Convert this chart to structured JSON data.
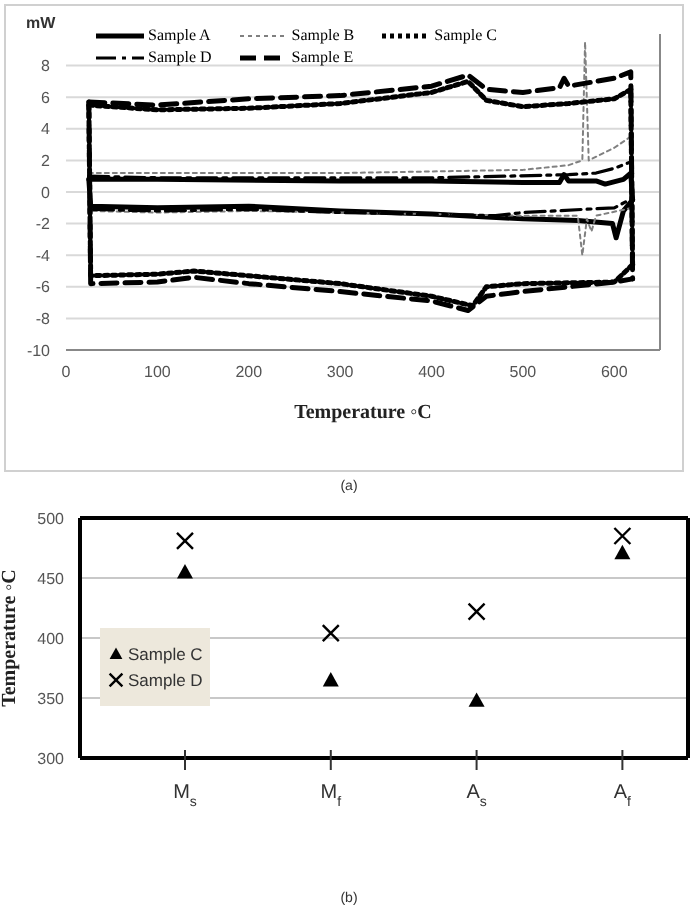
{
  "chart_data": [
    {
      "type": "line",
      "xlabel": "Temperature ◦C",
      "ylabel": "mW",
      "xlim": [
        0,
        650
      ],
      "xticks": [
        0,
        100,
        200,
        300,
        400,
        500,
        600
      ],
      "ylim": [
        -10,
        10
      ],
      "yticks": [
        -10,
        -8,
        -6,
        -4,
        -2,
        0,
        2,
        4,
        6,
        8
      ],
      "grid": "y",
      "legend": "top",
      "annotations": [
        "(a)"
      ],
      "series": [
        {
          "name": "Sample A",
          "color": "#000000",
          "line_style": "solid",
          "x": [
            25,
            100,
            300,
            400,
            500,
            540,
            545,
            550,
            580,
            590,
            610,
            618,
            620
          ],
          "values": [
            0.8,
            0.8,
            0.7,
            0.7,
            0.6,
            0.6,
            1.1,
            0.7,
            0.7,
            0.5,
            0.8,
            1.2,
            -0.5
          ]
        },
        {
          "color": "#000000",
          "line_style": "solid",
          "x": [
            25,
            27,
            100,
            200,
            300,
            400,
            500,
            560,
            598,
            602,
            610,
            620
          ],
          "values": [
            0.8,
            -0.9,
            -1.0,
            -0.9,
            -1.2,
            -1.4,
            -1.7,
            -1.8,
            -2.0,
            -2.9,
            -1.2,
            -0.5
          ]
        },
        {
          "name": "Sample B",
          "color": "#808080",
          "line_style": "dotted",
          "x": [
            25,
            100,
            300,
            400,
            500,
            550,
            565,
            568,
            572,
            600,
            618,
            620
          ],
          "values": [
            1.2,
            1.2,
            1.2,
            1.3,
            1.4,
            1.7,
            2.0,
            9.5,
            2.0,
            2.8,
            3.5,
            -1.0
          ]
        },
        {
          "color": "#808080",
          "line_style": "dotted",
          "x": [
            25,
            27,
            100,
            200,
            300,
            400,
            500,
            560,
            565,
            570,
            575,
            580,
            620
          ],
          "values": [
            1.2,
            -1.2,
            -1.3,
            -1.2,
            -1.3,
            -1.4,
            -1.5,
            -1.5,
            -4.0,
            -1.7,
            -2.5,
            -1.5,
            -1.0
          ]
        },
        {
          "name": "Sample C",
          "color": "#000000",
          "line_style": "dotted",
          "x": [
            25,
            100,
            200,
            300,
            400,
            440,
            460,
            500,
            550,
            600,
            618,
            620
          ],
          "values": [
            5.5,
            5.2,
            5.3,
            5.6,
            6.3,
            7.0,
            5.8,
            5.4,
            5.6,
            5.9,
            6.5,
            -4.6
          ]
        },
        {
          "color": "#000000",
          "line_style": "dotted",
          "x": [
            25,
            27,
            100,
            140,
            200,
            300,
            400,
            445,
            460,
            500,
            600,
            620
          ],
          "values": [
            5.5,
            -5.3,
            -5.2,
            -5.0,
            -5.3,
            -5.8,
            -6.6,
            -7.2,
            -6.0,
            -5.8,
            -5.7,
            -4.6
          ]
        },
        {
          "name": "Sample D",
          "color": "#000000",
          "line_style": "dashdot",
          "x": [
            25,
            100,
            300,
            400,
            480,
            550,
            580,
            600,
            618,
            620
          ],
          "values": [
            1.0,
            0.9,
            0.9,
            0.9,
            1.0,
            1.1,
            1.2,
            1.5,
            1.9,
            -0.4
          ]
        },
        {
          "color": "#000000",
          "line_style": "dashdot",
          "x": [
            25,
            27,
            100,
            200,
            300,
            400,
            470,
            500,
            600,
            620
          ],
          "values": [
            1.0,
            -1.1,
            -1.2,
            -1.1,
            -1.3,
            -1.4,
            -1.5,
            -1.3,
            -1.0,
            -0.4
          ]
        },
        {
          "name": "Sample E",
          "color": "#000000",
          "line_style": "dashed",
          "x": [
            25,
            100,
            200,
            300,
            400,
            440,
            460,
            500,
            540,
            545,
            550,
            600,
            618,
            620
          ],
          "values": [
            5.7,
            5.5,
            5.9,
            6.1,
            6.7,
            7.4,
            6.5,
            6.3,
            6.6,
            7.2,
            6.7,
            7.2,
            7.6,
            -5.5
          ]
        },
        {
          "color": "#000000",
          "line_style": "dashed",
          "x": [
            25,
            27,
            100,
            140,
            200,
            300,
            400,
            440,
            460,
            500,
            600,
            620
          ],
          "values": [
            5.7,
            -5.8,
            -5.7,
            -5.4,
            -5.8,
            -6.3,
            -6.9,
            -7.5,
            -6.6,
            -6.3,
            -5.7,
            -5.5
          ]
        }
      ]
    },
    {
      "type": "scatter",
      "ylabel": "Temperature ◦C",
      "categories": [
        "M$_{s}$",
        "M$_{f}$",
        "A$_{s}$",
        "A$_{f}$"
      ],
      "ylim": [
        300,
        500
      ],
      "yticks": [
        300,
        350,
        400,
        450,
        500
      ],
      "grid": "y",
      "legend": "left",
      "annotations": [
        "(b)"
      ],
      "series": [
        {
          "name": "Sample C",
          "color": "#000000",
          "marker": "triangle",
          "values": [
            455,
            365,
            348,
            471
          ]
        },
        {
          "name": "Sample D",
          "color": "#000000",
          "marker": "cross",
          "values": [
            481,
            404,
            422,
            485
          ]
        }
      ]
    }
  ]
}
